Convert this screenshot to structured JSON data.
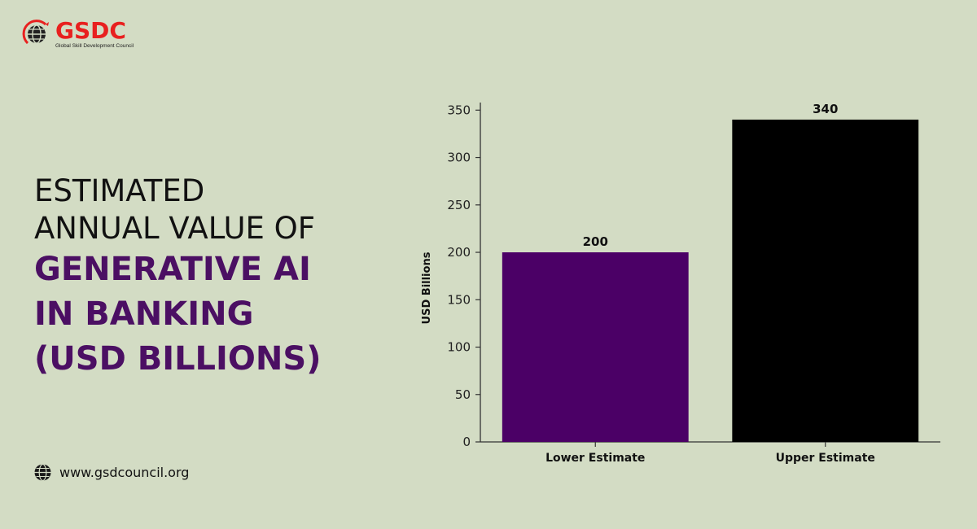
{
  "brand": {
    "name": "GSDC",
    "tagline": "Global Skill Development Council",
    "color": "#e8201f"
  },
  "headline": {
    "line1": "ESTIMATED",
    "line2": "ANNUAL VALUE OF",
    "line3": "GENERATIVE AI",
    "line4": "IN BANKING",
    "line5": "(USD BILLIONS)",
    "accent_color": "#4b0f63"
  },
  "footer": {
    "website": "www.gsdcouncil.org",
    "icon": "globe-icon"
  },
  "chart_data": {
    "type": "bar",
    "categories": [
      "Lower Estimate",
      "Upper Estimate"
    ],
    "values": [
      200,
      340
    ],
    "value_labels": [
      "200",
      "340"
    ],
    "bar_colors": [
      "#4b0066",
      "#000000"
    ],
    "title": "",
    "xlabel": "",
    "ylabel": "USD Billions",
    "ylim": [
      0,
      350
    ],
    "yticks": [
      0,
      50,
      100,
      150,
      200,
      250,
      300,
      350
    ],
    "grid": false,
    "legend": "none"
  }
}
